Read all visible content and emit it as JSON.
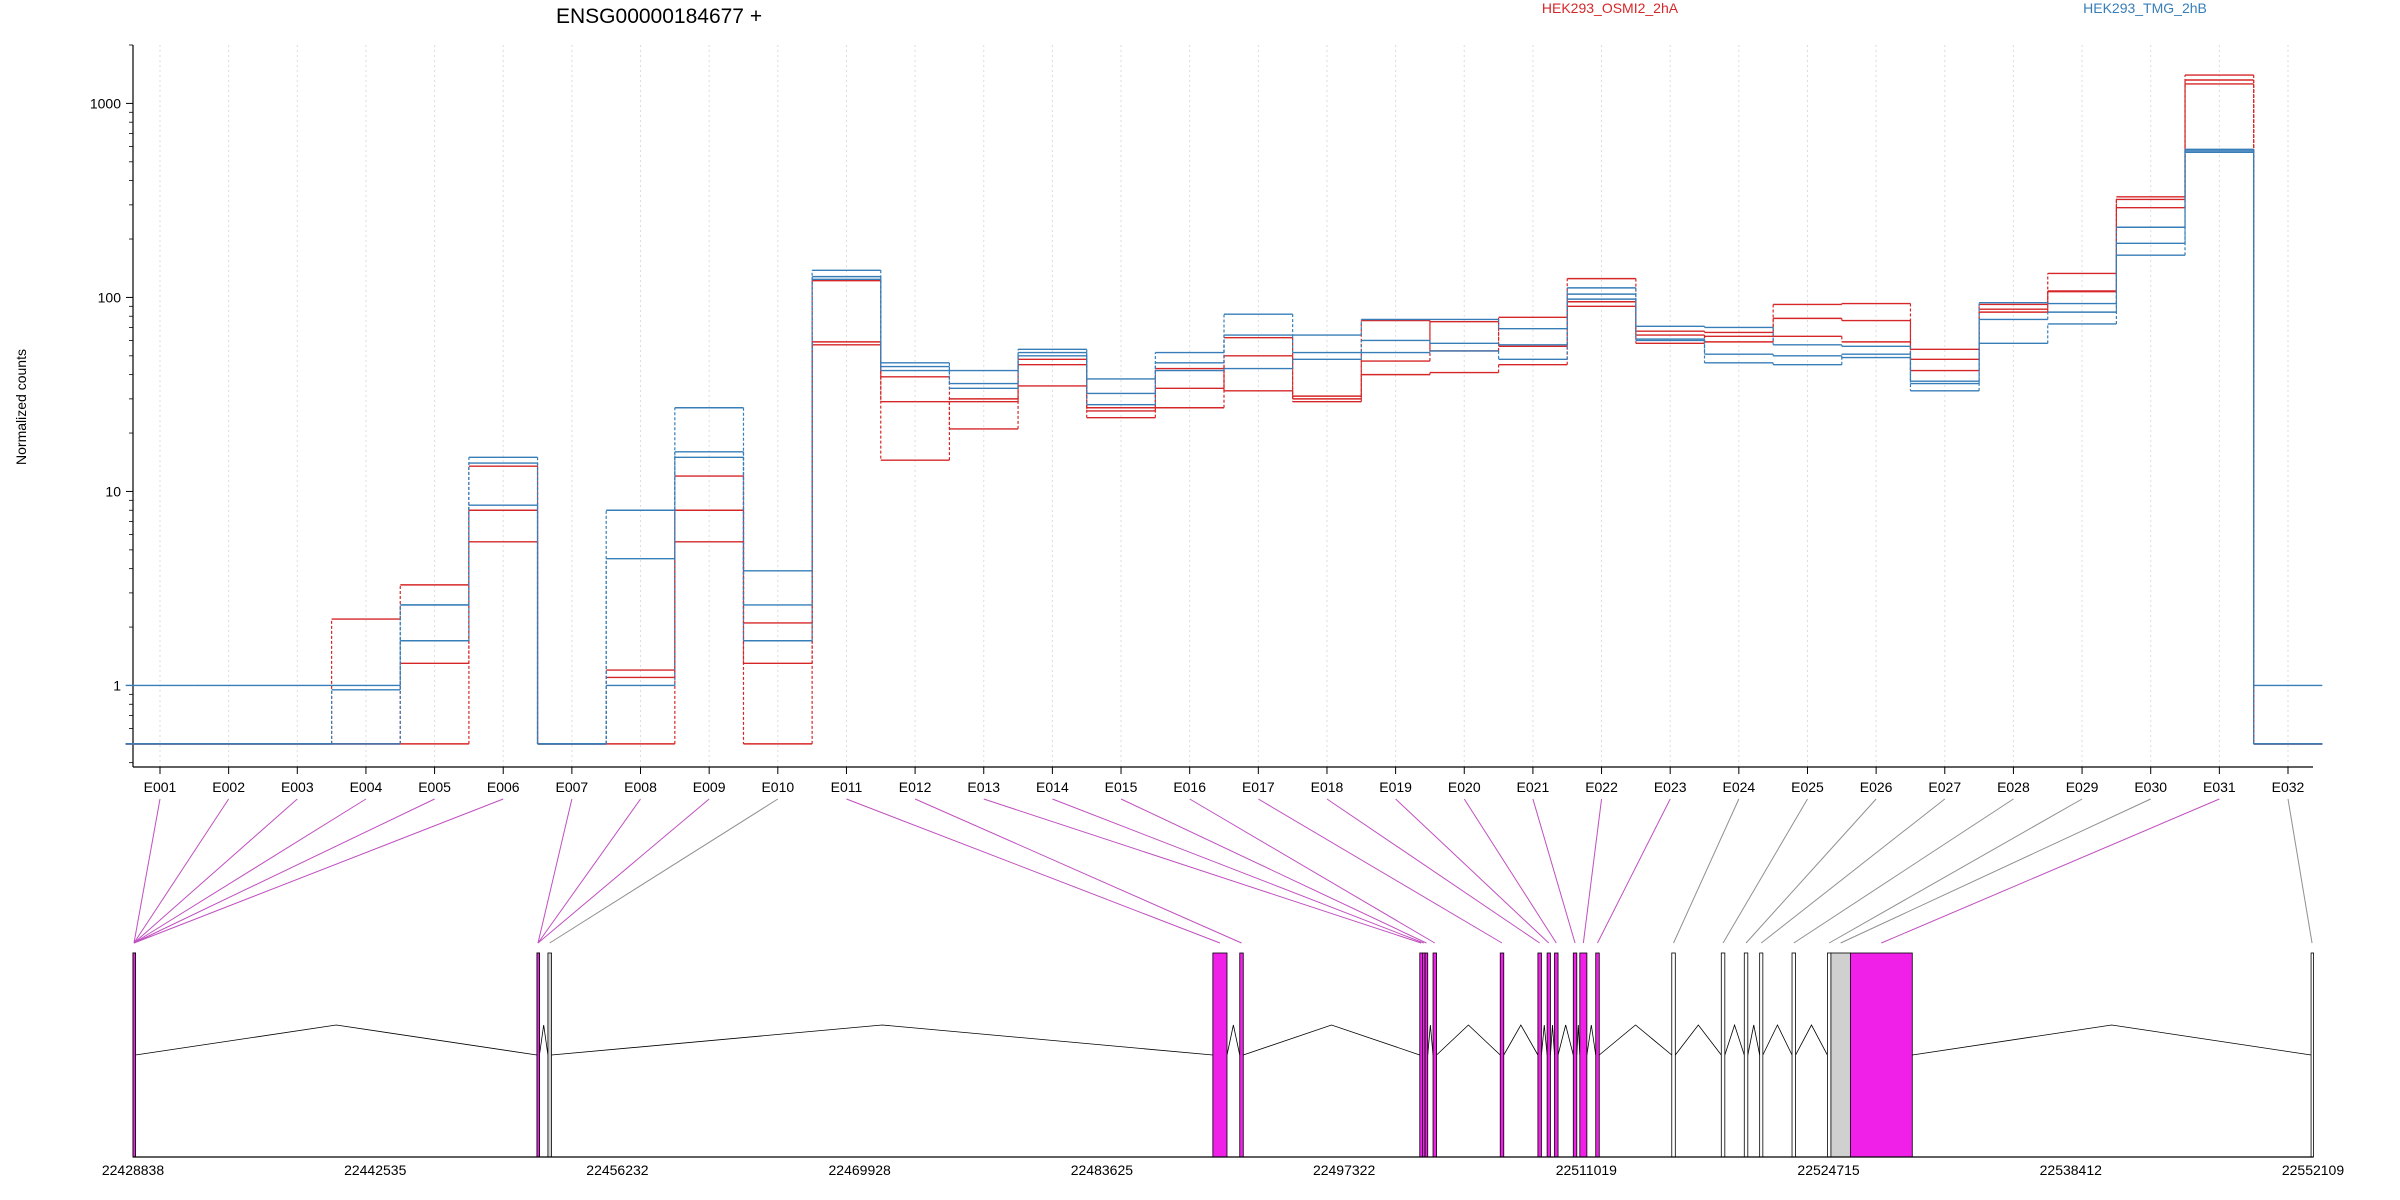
{
  "chart_data": {
    "type": "line",
    "title": "ENSG00000184677 +",
    "ylabel": "Normalized counts",
    "yscale": "log",
    "ylim": [
      0.38,
      2000
    ],
    "yticks": [
      1,
      10,
      100,
      1000
    ],
    "yticklabels": [
      "1",
      "10",
      "100",
      "1000"
    ],
    "categories": [
      "E001",
      "E002",
      "E003",
      "E004",
      "E005",
      "E006",
      "E007",
      "E008",
      "E009",
      "E010",
      "E011",
      "E012",
      "E013",
      "E014",
      "E015",
      "E016",
      "E017",
      "E018",
      "E019",
      "E020",
      "E021",
      "E022",
      "E023",
      "E024",
      "E025",
      "E026",
      "E027",
      "E028",
      "E029",
      "E030",
      "E031",
      "E032"
    ],
    "grid": true,
    "legend": [
      {
        "name": "HEK293_OSMI2_2hA",
        "color": "#d62728",
        "position": "top-center"
      },
      {
        "name": "HEK293_TMG_2hB",
        "color": "#377eb8",
        "position": "top-right"
      }
    ],
    "series": [
      {
        "group": "HEK293_OSMI2_2hA",
        "color": "#d62728",
        "values": [
          0.5,
          0.5,
          0.5,
          2.2,
          3.3,
          13.5,
          0.5,
          1.2,
          12,
          2.1,
          57,
          39,
          29,
          45,
          24,
          34,
          50,
          30,
          47,
          75,
          56,
          125,
          64,
          59,
          63,
          59,
          42,
          87,
          107,
          330,
          1400,
          0.5
        ]
      },
      {
        "group": "HEK293_OSMI2_2hA",
        "color": "#d62728",
        "values": [
          0.5,
          0.5,
          0.5,
          0.5,
          1.3,
          8,
          0.5,
          1.1,
          8,
          1.3,
          59,
          29,
          21,
          35,
          26,
          27,
          62,
          31,
          40,
          41,
          45,
          90,
          58,
          63,
          78,
          76,
          48,
          84,
          108,
          290,
          1260,
          0.5
        ]
      },
      {
        "group": "HEK293_OSMI2_2hA",
        "color": "#d62728",
        "values": [
          0.5,
          0.5,
          0.5,
          0.5,
          0.5,
          5.5,
          0.5,
          0.5,
          5.5,
          0.5,
          122,
          14.5,
          30,
          48,
          27,
          43,
          33,
          29,
          76,
          53,
          79,
          95,
          67,
          66,
          92,
          93,
          54,
          92,
          133,
          320,
          1320,
          0.5
        ]
      },
      {
        "group": "HEK293_TMG_2hB",
        "color": "#377eb8",
        "values": [
          1,
          1,
          1,
          1,
          2.6,
          15,
          0.5,
          8,
          27,
          3.9,
          138,
          46,
          42,
          54,
          38,
          52,
          82,
          64,
          77,
          77,
          69,
          112,
          71,
          70,
          57,
          56,
          37,
          94,
          93,
          230,
          580,
          1
        ]
      },
      {
        "group": "HEK293_TMG_2hB",
        "color": "#377eb8",
        "values": [
          0.5,
          0.5,
          0.5,
          0.95,
          2.6,
          14,
          0.5,
          4.5,
          16,
          2.6,
          128,
          42,
          36,
          52,
          32,
          46,
          64,
          52,
          60,
          58,
          57,
          104,
          61,
          51,
          50,
          49,
          36,
          77,
          84,
          190,
          570,
          0.5
        ]
      },
      {
        "group": "HEK293_TMG_2hB",
        "color": "#377eb8",
        "values": [
          0.5,
          0.5,
          0.5,
          0.5,
          1.7,
          8.5,
          0.5,
          1,
          15,
          1.7,
          124,
          44,
          34,
          50,
          28,
          42,
          43,
          48,
          52,
          53,
          48,
          98,
          60,
          46,
          45,
          51,
          33,
          58,
          73,
          165,
          560,
          0.5
        ]
      }
    ],
    "gene_model": {
      "genomic_ticks": [
        "22428838",
        "22442535",
        "22456232",
        "22469928",
        "22483625",
        "22497322",
        "22511019",
        "22524715",
        "22538412",
        "22552109"
      ],
      "start": 22428838,
      "end": 22552109,
      "exons": [
        {
          "id": "E001",
          "start": 22428838,
          "end": 22428950,
          "color": "#f020e8"
        },
        {
          "id": "E002",
          "start": 22428838,
          "end": 22428950,
          "color": "#f020e8"
        },
        {
          "id": "E003",
          "start": 22428838,
          "end": 22428950,
          "color": "#f020e8"
        },
        {
          "id": "E004",
          "start": 22428838,
          "end": 22428950,
          "color": "#f020e8"
        },
        {
          "id": "E005",
          "start": 22428838,
          "end": 22428950,
          "color": "#f020e8"
        },
        {
          "id": "E006",
          "start": 22428838,
          "end": 22428950,
          "color": "#f020e8"
        },
        {
          "id": "E007",
          "start": 22451680,
          "end": 22451800,
          "color": "#f020e8"
        },
        {
          "id": "E008",
          "start": 22451680,
          "end": 22451800,
          "color": "#f020e8"
        },
        {
          "id": "E009",
          "start": 22451680,
          "end": 22451800,
          "color": "#f020e8"
        },
        {
          "id": "E010",
          "start": 22452300,
          "end": 22452500,
          "color": "#d0d0d0"
        },
        {
          "id": "E011",
          "start": 22489900,
          "end": 22490700,
          "color": "#f020e8"
        },
        {
          "id": "E012",
          "start": 22491420,
          "end": 22491620,
          "color": "#f020e8"
        },
        {
          "id": "E013",
          "start": 22501600,
          "end": 22501750,
          "color": "#f020e8"
        },
        {
          "id": "E014",
          "start": 22501750,
          "end": 22501900,
          "color": "#f020e8"
        },
        {
          "id": "E015",
          "start": 22501900,
          "end": 22502050,
          "color": "#f020e8"
        },
        {
          "id": "E016",
          "start": 22502350,
          "end": 22502550,
          "color": "#f020e8"
        },
        {
          "id": "E017",
          "start": 22506150,
          "end": 22506350,
          "color": "#f020e8"
        },
        {
          "id": "E018",
          "start": 22508280,
          "end": 22508480,
          "color": "#f020e8"
        },
        {
          "id": "E019",
          "start": 22508800,
          "end": 22508990,
          "color": "#f020e8"
        },
        {
          "id": "E020",
          "start": 22509220,
          "end": 22509420,
          "color": "#f020e8"
        },
        {
          "id": "E021",
          "start": 22510280,
          "end": 22510480,
          "color": "#f020e8"
        },
        {
          "id": "E022",
          "start": 22510650,
          "end": 22511050,
          "color": "#f020e8"
        },
        {
          "id": "E023",
          "start": 22511550,
          "end": 22511750,
          "color": "#f020e8"
        },
        {
          "id": "E024",
          "start": 22515850,
          "end": 22516050,
          "color": "#ffffff"
        },
        {
          "id": "E025",
          "start": 22518650,
          "end": 22518850,
          "color": "#ffffff"
        },
        {
          "id": "E026",
          "start": 22519950,
          "end": 22520150,
          "color": "#ffffff"
        },
        {
          "id": "E027",
          "start": 22520820,
          "end": 22521000,
          "color": "#ffffff"
        },
        {
          "id": "E028",
          "start": 22522650,
          "end": 22522850,
          "color": "#ffffff"
        },
        {
          "id": "E029",
          "start": 22524650,
          "end": 22524850,
          "color": "#ffffff"
        },
        {
          "id": "E030",
          "start": 22524850,
          "end": 22525950,
          "color": "#d0d0d0"
        },
        {
          "id": "E031",
          "start": 22525950,
          "end": 22529450,
          "color": "#f020e8"
        },
        {
          "id": "E032",
          "start": 22552000,
          "end": 22552109,
          "color": "#ffffff"
        }
      ]
    }
  }
}
